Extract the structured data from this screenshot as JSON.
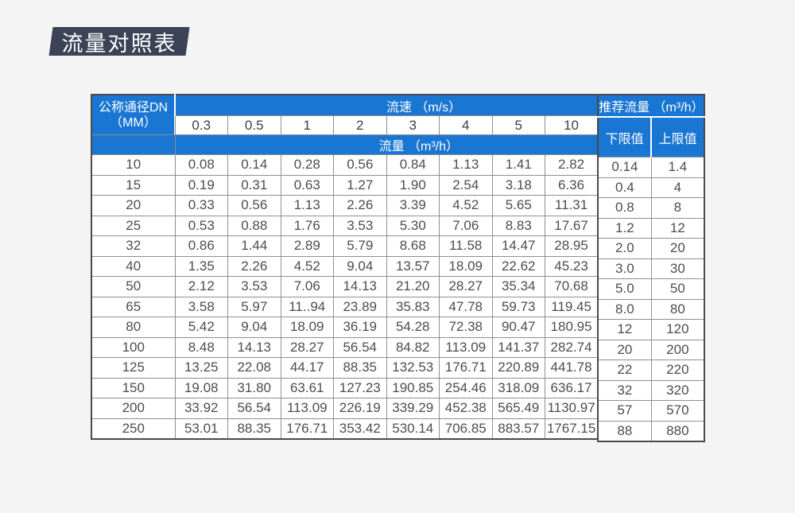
{
  "title": "流量对照表",
  "colors": {
    "header_blue": "#1976d2",
    "badge_navy": "#3c4357",
    "page_bg": "#f4f4f5",
    "outer_border": "#4a4a4a",
    "inner_border": "#8f8f8f",
    "header_text": "#ffffff",
    "cell_text": "#4d4d4d"
  },
  "chart_data": {
    "type": "table",
    "title": "流量对照表",
    "header": {
      "dn_line1": "公称通径DN",
      "dn_line2": "（MM）",
      "speed_group": "流速 （m/s）",
      "flow_group": "流量 （m³/h）",
      "recommended_group": "推荐流量 （m³/h）",
      "lower": "下限值",
      "upper": "上限值",
      "velocities": [
        "0.3",
        "0.5",
        "1",
        "2",
        "3",
        "4",
        "5",
        "10"
      ]
    },
    "rows": [
      {
        "dn": "10",
        "flows": [
          "0.08",
          "0.14",
          "0.28",
          "0.56",
          "0.84",
          "1.13",
          "1.41",
          "2.82"
        ],
        "lower": "0.14",
        "upper": "1.4"
      },
      {
        "dn": "15",
        "flows": [
          "0.19",
          "0.31",
          "0.63",
          "1.27",
          "1.90",
          "2.54",
          "3.18",
          "6.36"
        ],
        "lower": "0.4",
        "upper": "4"
      },
      {
        "dn": "20",
        "flows": [
          "0.33",
          "0.56",
          "1.13",
          "2.26",
          "3.39",
          "4.52",
          "5.65",
          "11.31"
        ],
        "lower": "0.8",
        "upper": "8"
      },
      {
        "dn": "25",
        "flows": [
          "0.53",
          "0.88",
          "1.76",
          "3.53",
          "5.30",
          "7.06",
          "8.83",
          "17.67"
        ],
        "lower": "1.2",
        "upper": "12"
      },
      {
        "dn": "32",
        "flows": [
          "0.86",
          "1.44",
          "2.89",
          "5.79",
          "8.68",
          "11.58",
          "14.47",
          "28.95"
        ],
        "lower": "2.0",
        "upper": "20"
      },
      {
        "dn": "40",
        "flows": [
          "1.35",
          "2.26",
          "4.52",
          "9.04",
          "13.57",
          "18.09",
          "22.62",
          "45.23"
        ],
        "lower": "3.0",
        "upper": "30"
      },
      {
        "dn": "50",
        "flows": [
          "2.12",
          "3.53",
          "7.06",
          "14.13",
          "21.20",
          "28.27",
          "35.34",
          "70.68"
        ],
        "lower": "5.0",
        "upper": "50"
      },
      {
        "dn": "65",
        "flows": [
          "3.58",
          "5.97",
          "11..94",
          "23.89",
          "35.83",
          "47.78",
          "59.73",
          "119.45"
        ],
        "lower": "8.0",
        "upper": "80"
      },
      {
        "dn": "80",
        "flows": [
          "5.42",
          "9.04",
          "18.09",
          "36.19",
          "54.28",
          "72.38",
          "90.47",
          "180.95"
        ],
        "lower": "12",
        "upper": "120"
      },
      {
        "dn": "100",
        "flows": [
          "8.48",
          "14.13",
          "28.27",
          "56.54",
          "84.82",
          "113.09",
          "141.37",
          "282.74"
        ],
        "lower": "20",
        "upper": "200"
      },
      {
        "dn": "125",
        "flows": [
          "13.25",
          "22.08",
          "44.17",
          "88.35",
          "132.53",
          "176.71",
          "220.89",
          "441.78"
        ],
        "lower": "22",
        "upper": "220"
      },
      {
        "dn": "150",
        "flows": [
          "19.08",
          "31.80",
          "63.61",
          "127.23",
          "190.85",
          "254.46",
          "318.09",
          "636.17"
        ],
        "lower": "32",
        "upper": "320"
      },
      {
        "dn": "200",
        "flows": [
          "33.92",
          "56.54",
          "113.09",
          "226.19",
          "339.29",
          "452.38",
          "565.49",
          "1130.97"
        ],
        "lower": "57",
        "upper": "570"
      },
      {
        "dn": "250",
        "flows": [
          "53.01",
          "88.35",
          "176.71",
          "353.42",
          "530.14",
          "706.85",
          "883.57",
          "1767.15"
        ],
        "lower": "88",
        "upper": "880"
      }
    ]
  }
}
